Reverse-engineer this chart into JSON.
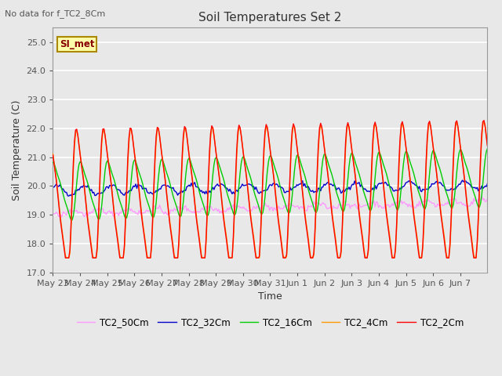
{
  "title": "Soil Temperatures Set 2",
  "xlabel": "Time",
  "ylabel": "Soil Temperature (C)",
  "no_data_text": "No data for f_TC2_8Cm",
  "legend_label_text": "SI_met",
  "ylim": [
    17.0,
    25.5
  ],
  "yticks": [
    17.0,
    18.0,
    19.0,
    20.0,
    21.0,
    22.0,
    23.0,
    24.0,
    25.0
  ],
  "x_tick_labels": [
    "May 23",
    "May 24",
    "May 25",
    "May 26",
    "May 27",
    "May 28",
    "May 29",
    "May 30",
    "May 31",
    "Jun 1",
    "Jun 2",
    "Jun 3",
    "Jun 4",
    "Jun 5",
    "Jun 6",
    "Jun 7"
  ],
  "series_colors": {
    "TC2_2Cm": "#ff0000",
    "TC2_4Cm": "#ff9900",
    "TC2_16Cm": "#00cc00",
    "TC2_32Cm": "#0000cc",
    "TC2_50Cm": "#ff99ff"
  },
  "line_width": 1.0,
  "plot_bg_color": "#e8e8e8",
  "fig_bg_color": "#e8e8e8",
  "grid_color": "#ffffff",
  "title_fontsize": 11,
  "axis_label_fontsize": 9,
  "tick_fontsize": 8
}
